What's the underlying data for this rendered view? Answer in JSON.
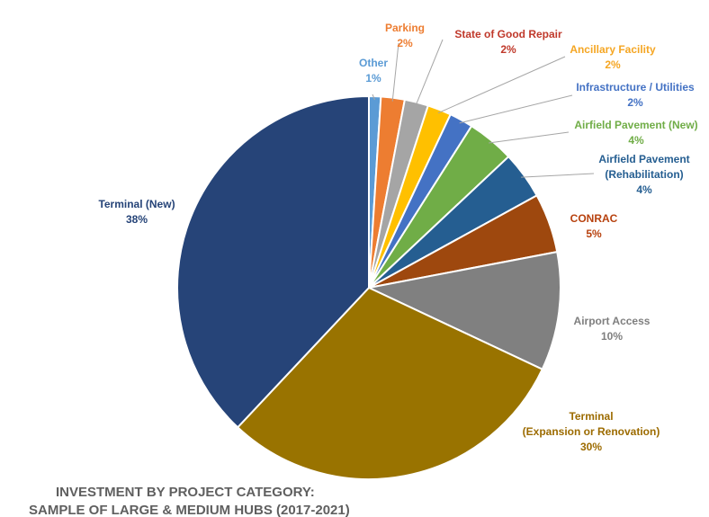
{
  "chart_data": {
    "type": "pie",
    "title_lines": [
      "INVESTMENT BY PROJECT CATEGORY:",
      "SAMPLE OF LARGE & MEDIUM HUBS (2017-2021)"
    ],
    "start": "12 o'clock",
    "direction": "clockwise",
    "slices": [
      {
        "label_lines": [
          "Other"
        ],
        "pct_label": "1%",
        "value": 1,
        "color": "#5b9bd5",
        "label_color": "#5b9bd5"
      },
      {
        "label_lines": [
          "Parking"
        ],
        "pct_label": "2%",
        "value": 2,
        "color": "#ed7d31",
        "label_color": "#ed7d31"
      },
      {
        "label_lines": [
          "State of Good Repair"
        ],
        "pct_label": "2%",
        "value": 2,
        "color": "#a5a5a5",
        "label_color": "#c0392b"
      },
      {
        "label_lines": [
          "Ancillary Facility"
        ],
        "pct_label": "2%",
        "value": 2,
        "color": "#ffc000",
        "label_color": "#f5a623"
      },
      {
        "label_lines": [
          "Infrastructure / Utilities"
        ],
        "pct_label": "2%",
        "value": 2,
        "color": "#4472c4",
        "label_color": "#4472c4"
      },
      {
        "label_lines": [
          "Airfield Pavement (New)"
        ],
        "pct_label": "4%",
        "value": 4,
        "color": "#70ad47",
        "label_color": "#70ad47"
      },
      {
        "label_lines": [
          "Airfield Pavement",
          "(Rehabilitation)"
        ],
        "pct_label": "4%",
        "value": 4,
        "color": "#255e91",
        "label_color": "#255e91"
      },
      {
        "label_lines": [
          "CONRAC"
        ],
        "pct_label": "5%",
        "value": 5,
        "color": "#9e480e",
        "label_color": "#b7410e"
      },
      {
        "label_lines": [
          "Airport Access"
        ],
        "pct_label": "10%",
        "value": 10,
        "color": "#808080",
        "label_color": "#7f7f7f"
      },
      {
        "label_lines": [
          "Terminal",
          "(Expansion or Renovation)"
        ],
        "pct_label": "30%",
        "value": 30,
        "color": "#997300",
        "label_color": "#9c6b00"
      },
      {
        "label_lines": [
          "Terminal (New)"
        ],
        "pct_label": "38%",
        "value": 38,
        "color": "#264478",
        "label_color": "#264478"
      }
    ]
  }
}
